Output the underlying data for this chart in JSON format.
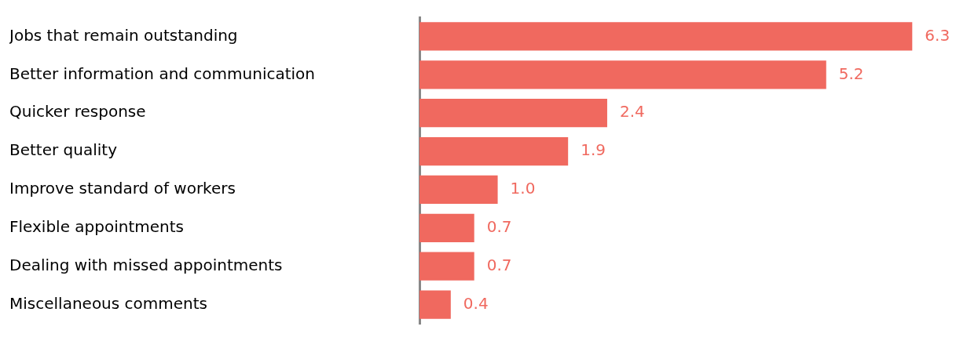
{
  "chart_data": {
    "type": "bar",
    "orientation": "horizontal",
    "categories": [
      "Jobs that remain outstanding",
      "Better information and communication",
      "Quicker response",
      "Better quality",
      "Improve standard of workers",
      "Flexible appointments",
      "Dealing with missed appointments",
      "Miscellaneous comments"
    ],
    "values": [
      6.3,
      5.2,
      2.4,
      1.9,
      1.0,
      0.7,
      0.7,
      0.4
    ],
    "value_labels": [
      "6.3",
      "5.2",
      "2.4",
      "1.9",
      "1.0",
      "0.7",
      "0.7",
      "0.4"
    ],
    "color": "#f0695f",
    "tick_labels": "y",
    "legend": false
  }
}
